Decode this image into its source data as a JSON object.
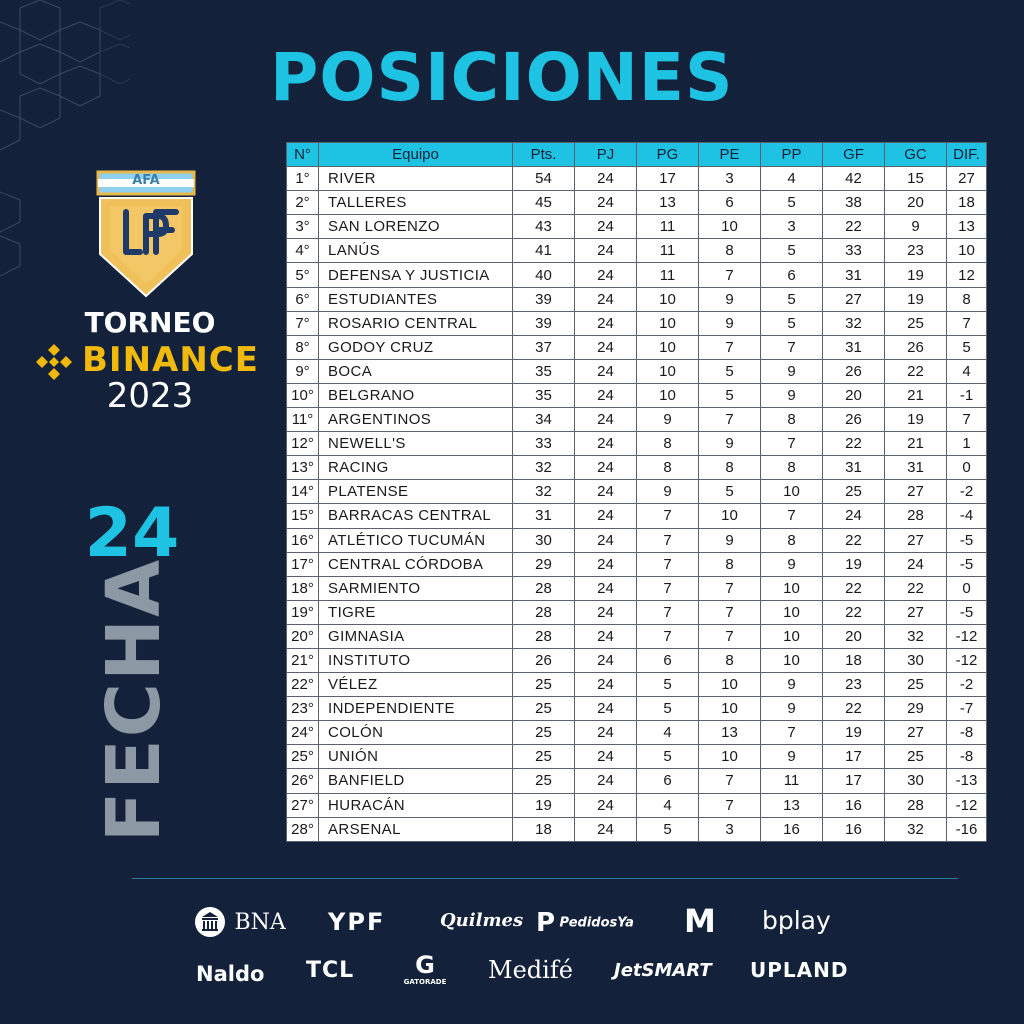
{
  "header": {
    "title": "POSICIONES"
  },
  "branding": {
    "logo_top": "AFA",
    "logo_monogram": "LPF",
    "torneo": "TORNEO",
    "binance": "BINANCE",
    "year": "2023",
    "colors": {
      "accent": "#1ec2e2",
      "gold": "#f0b90b",
      "background": "#13223a"
    }
  },
  "fecha": {
    "number": "24",
    "label": "FECHA"
  },
  "table": {
    "columns": [
      "N°",
      "Equipo",
      "Pts.",
      "PJ",
      "PG",
      "PE",
      "PP",
      "GF",
      "GC",
      "DIF."
    ],
    "rows": [
      [
        "1°",
        "RIVER",
        "54",
        "24",
        "17",
        "3",
        "4",
        "42",
        "15",
        "27"
      ],
      [
        "2°",
        "TALLERES",
        "45",
        "24",
        "13",
        "6",
        "5",
        "38",
        "20",
        "18"
      ],
      [
        "3°",
        "SAN LORENZO",
        "43",
        "24",
        "11",
        "10",
        "3",
        "22",
        "9",
        "13"
      ],
      [
        "4°",
        "LANÚS",
        "41",
        "24",
        "11",
        "8",
        "5",
        "33",
        "23",
        "10"
      ],
      [
        "5°",
        "DEFENSA Y JUSTICIA",
        "40",
        "24",
        "11",
        "7",
        "6",
        "31",
        "19",
        "12"
      ],
      [
        "6°",
        "ESTUDIANTES",
        "39",
        "24",
        "10",
        "9",
        "5",
        "27",
        "19",
        "8"
      ],
      [
        "7°",
        "ROSARIO CENTRAL",
        "39",
        "24",
        "10",
        "9",
        "5",
        "32",
        "25",
        "7"
      ],
      [
        "8°",
        "GODOY CRUZ",
        "37",
        "24",
        "10",
        "7",
        "7",
        "31",
        "26",
        "5"
      ],
      [
        "9°",
        "BOCA",
        "35",
        "24",
        "10",
        "5",
        "9",
        "26",
        "22",
        "4"
      ],
      [
        "10°",
        "BELGRANO",
        "35",
        "24",
        "10",
        "5",
        "9",
        "20",
        "21",
        "-1"
      ],
      [
        "11°",
        "ARGENTINOS",
        "34",
        "24",
        "9",
        "7",
        "8",
        "26",
        "19",
        "7"
      ],
      [
        "12°",
        "NEWELL'S",
        "33",
        "24",
        "8",
        "9",
        "7",
        "22",
        "21",
        "1"
      ],
      [
        "13°",
        "RACING",
        "32",
        "24",
        "8",
        "8",
        "8",
        "31",
        "31",
        "0"
      ],
      [
        "14°",
        "PLATENSE",
        "32",
        "24",
        "9",
        "5",
        "10",
        "25",
        "27",
        "-2"
      ],
      [
        "15°",
        "BARRACAS CENTRAL",
        "31",
        "24",
        "7",
        "10",
        "7",
        "24",
        "28",
        "-4"
      ],
      [
        "16°",
        "ATLÉTICO TUCUMÁN",
        "30",
        "24",
        "7",
        "9",
        "8",
        "22",
        "27",
        "-5"
      ],
      [
        "17°",
        "CENTRAL CÓRDOBA",
        "29",
        "24",
        "7",
        "8",
        "9",
        "19",
        "24",
        "-5"
      ],
      [
        "18°",
        "SARMIENTO",
        "28",
        "24",
        "7",
        "7",
        "10",
        "22",
        "22",
        "0"
      ],
      [
        "19°",
        "TIGRE",
        "28",
        "24",
        "7",
        "7",
        "10",
        "22",
        "27",
        "-5"
      ],
      [
        "20°",
        "GIMNASIA",
        "28",
        "24",
        "7",
        "7",
        "10",
        "20",
        "32",
        "-12"
      ],
      [
        "21°",
        "INSTITUTO",
        "26",
        "24",
        "6",
        "8",
        "10",
        "18",
        "30",
        "-12"
      ],
      [
        "22°",
        "VÉLEZ",
        "25",
        "24",
        "5",
        "10",
        "9",
        "23",
        "25",
        "-2"
      ],
      [
        "23°",
        "INDEPENDIENTE",
        "25",
        "24",
        "5",
        "10",
        "9",
        "22",
        "29",
        "-7"
      ],
      [
        "24°",
        "COLÓN",
        "25",
        "24",
        "4",
        "13",
        "7",
        "19",
        "27",
        "-8"
      ],
      [
        "25°",
        "UNIÓN",
        "25",
        "24",
        "5",
        "10",
        "9",
        "17",
        "25",
        "-8"
      ],
      [
        "26°",
        "BANFIELD",
        "25",
        "24",
        "6",
        "7",
        "11",
        "17",
        "30",
        "-13"
      ],
      [
        "27°",
        "HURACÁN",
        "19",
        "24",
        "4",
        "7",
        "13",
        "16",
        "28",
        "-12"
      ],
      [
        "28°",
        "ARSENAL",
        "18",
        "24",
        "5",
        "3",
        "16",
        "16",
        "32",
        "-16"
      ]
    ]
  },
  "sponsors": {
    "row1": [
      "BNA",
      "YPF",
      "Quilmes",
      "PedidosYa",
      "M",
      "bplay"
    ],
    "row2": [
      "Naldo",
      "TCL",
      "GATORADE",
      "Medifé",
      "JetSMART",
      "UPLAND"
    ]
  }
}
